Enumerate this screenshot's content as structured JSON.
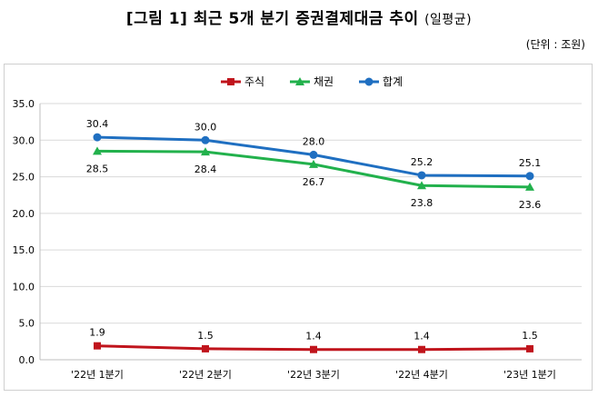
{
  "header": {
    "title": "[그림 1] 최근 5개 분기 증권결제대금 추이",
    "title_sub": "(일평균)",
    "unit": "(단위 : 조원)"
  },
  "chart_data": {
    "type": "line",
    "categories": [
      "'22년 1분기",
      "'22년 2분기",
      "'22년 3분기",
      "'22년 4분기",
      "'23년 1분기"
    ],
    "series": [
      {
        "name": "주식",
        "values": [
          1.9,
          1.5,
          1.4,
          1.4,
          1.5
        ],
        "color": "#c0141c",
        "marker": "square",
        "label_pos": "above"
      },
      {
        "name": "채권",
        "values": [
          28.5,
          28.4,
          26.7,
          23.8,
          23.6
        ],
        "color": "#22b14c",
        "marker": "triangle",
        "label_pos": "below"
      },
      {
        "name": "합계",
        "values": [
          30.4,
          30.0,
          28.0,
          25.2,
          25.1
        ],
        "color": "#1f6fc1",
        "marker": "circle",
        "label_pos": "above"
      }
    ],
    "yticks": [
      "0.0",
      "5.0",
      "10.0",
      "15.0",
      "20.0",
      "25.0",
      "30.0",
      "35.0"
    ],
    "ylim": [
      0,
      35
    ],
    "grid": true,
    "legend": "top-center"
  }
}
